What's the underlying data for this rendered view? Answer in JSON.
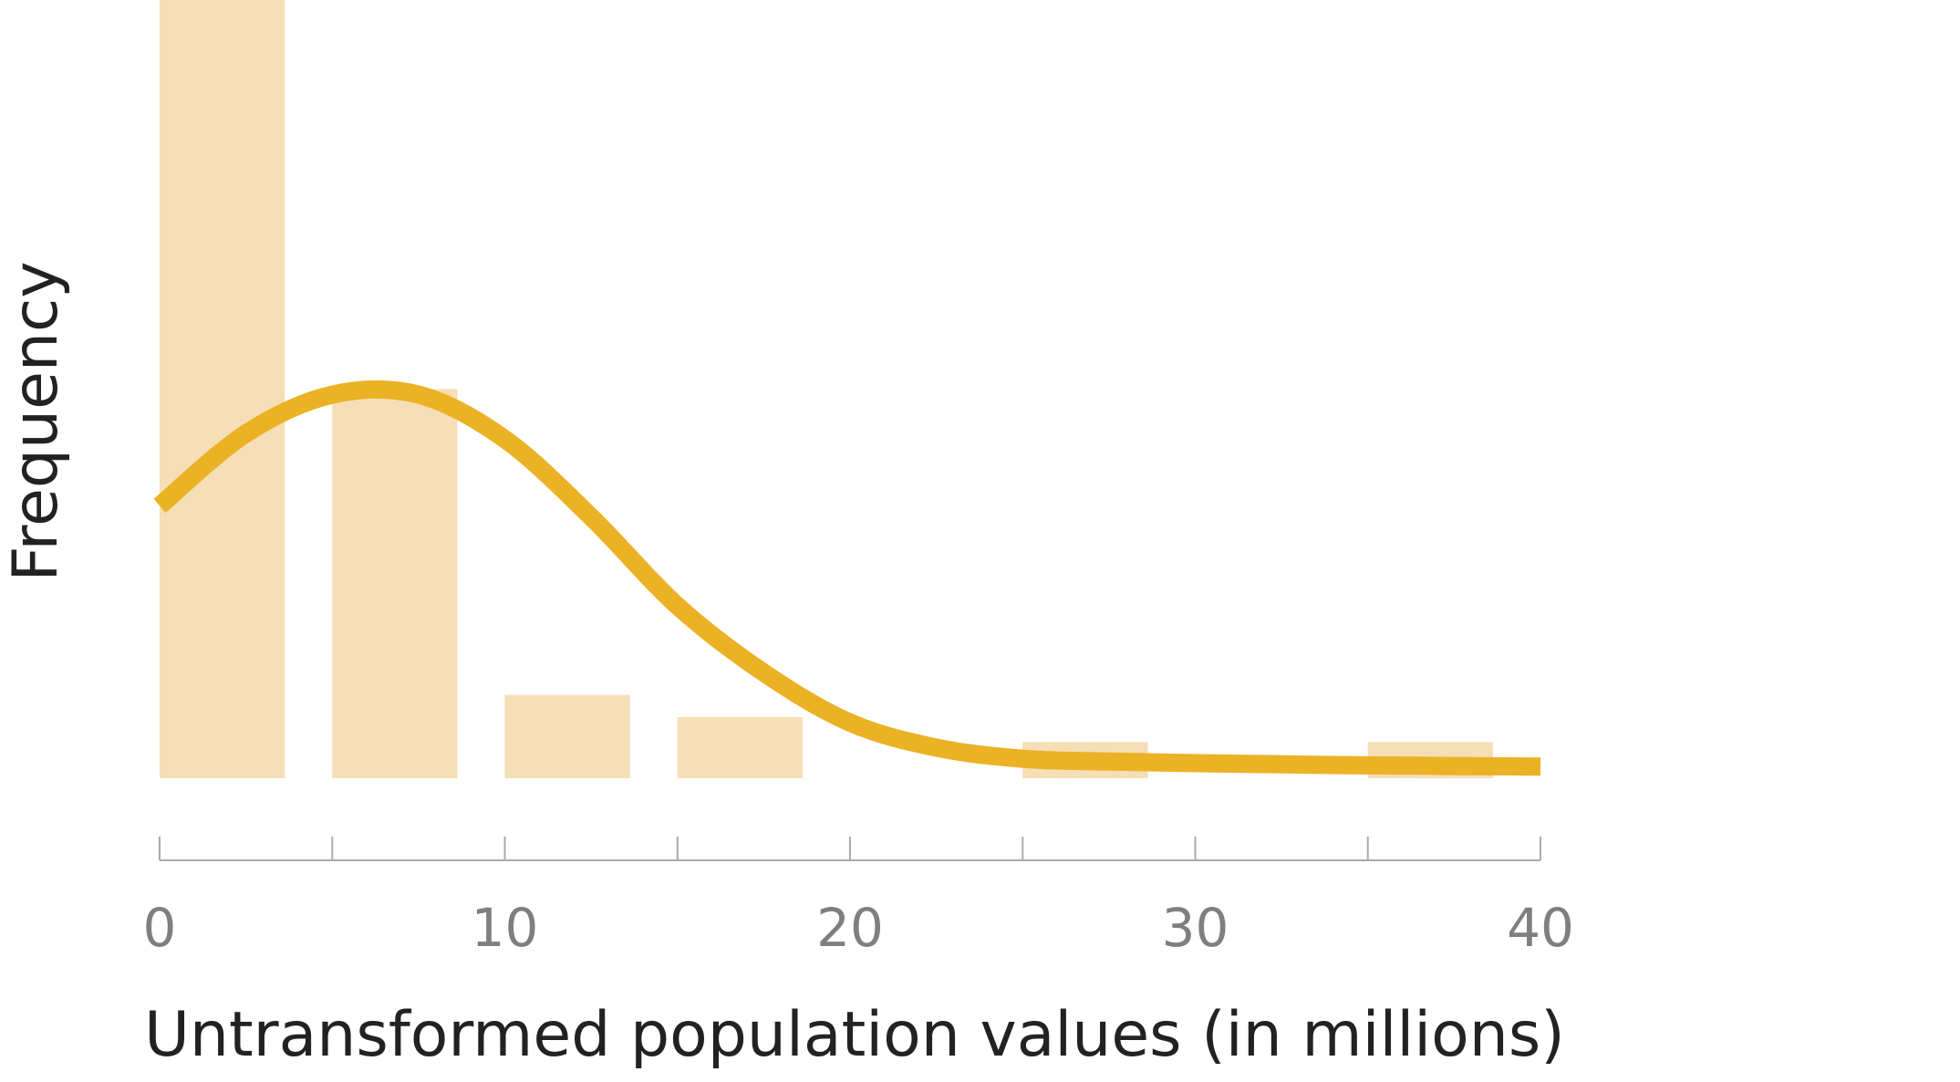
{
  "chart_data": {
    "type": "bar",
    "title": "",
    "xlabel": "Untransformed population values (in millions)",
    "ylabel": "Frequency",
    "xlim": [
      0,
      40
    ],
    "ylim": [
      0,
      14
    ],
    "bin_width": 5,
    "bins": [
      {
        "start": 0,
        "end": 5,
        "value": 14
      },
      {
        "start": 5,
        "end": 10,
        "value": 7
      },
      {
        "start": 10,
        "end": 15,
        "value": 1.5
      },
      {
        "start": 15,
        "end": 20,
        "value": 1.1
      },
      {
        "start": 20,
        "end": 25,
        "value": 0
      },
      {
        "start": 25,
        "end": 30,
        "value": 0.65
      },
      {
        "start": 30,
        "end": 35,
        "value": 0
      },
      {
        "start": 35,
        "end": 40,
        "value": 0.65
      }
    ],
    "x_ticks": [
      0,
      5,
      10,
      15,
      20,
      25,
      30,
      35,
      40
    ],
    "x_tick_labels": [
      {
        "value": 0,
        "label": "0"
      },
      {
        "value": 10,
        "label": "10"
      },
      {
        "value": 20,
        "label": "20"
      },
      {
        "value": 30,
        "label": "30"
      },
      {
        "value": 40,
        "label": "40"
      }
    ],
    "curve": {
      "type": "density",
      "x": [
        0,
        2.5,
        5,
        7.5,
        10,
        12.5,
        15,
        17.5,
        20,
        22.5,
        25,
        27.5,
        30,
        32.5,
        35,
        37.5,
        40
      ],
      "y": [
        4.9,
        6.2,
        6.9,
        6.9,
        6.1,
        4.7,
        3.1,
        1.9,
        1.0,
        0.55,
        0.35,
        0.3,
        0.27,
        0.25,
        0.23,
        0.22,
        0.21
      ]
    },
    "grid": false,
    "legend": "none",
    "colors": {
      "bar": "#f6deb6",
      "curve": "#ebb225",
      "axis": "#aaaaaa",
      "tick_label": "#7f7f7f",
      "axis_title": "#222222"
    }
  }
}
